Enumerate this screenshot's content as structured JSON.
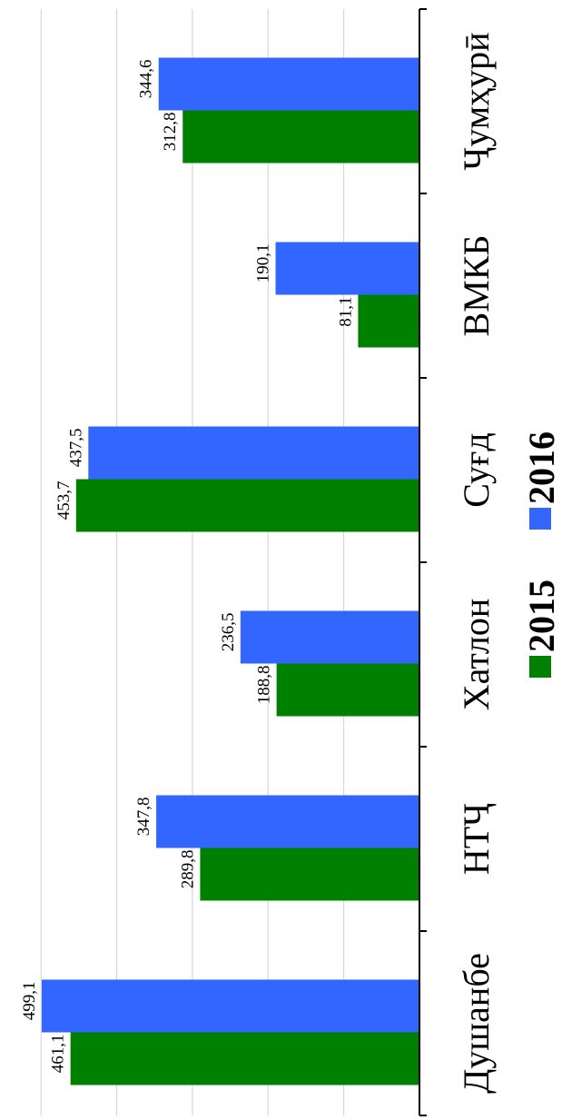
{
  "chart_data": {
    "type": "bar",
    "orientation": "rotated-90",
    "categories": [
      "Душанбе",
      "НТҶ",
      "Хатлон",
      "Суғд",
      "ВМКБ",
      "Ҷумҳурӣ"
    ],
    "series": [
      {
        "name": "2015",
        "color": "#008000",
        "values": [
          461.1,
          289.8,
          188.8,
          453.7,
          81.1,
          312.8
        ]
      },
      {
        "name": "2016",
        "color": "#3366ff",
        "values": [
          499.1,
          347.8,
          236.5,
          437.5,
          190.1,
          344.6
        ]
      }
    ],
    "value_labels": {
      "2015": [
        "461,1",
        "289,8",
        "188,8",
        "453,7",
        "81,1",
        "312,8"
      ],
      "2016": [
        "499,1",
        "347,8",
        "236,5",
        "437,5",
        "190,1",
        "344,6"
      ]
    },
    "ylim": [
      0,
      500
    ],
    "grid": true,
    "legend_position": "bottom"
  }
}
